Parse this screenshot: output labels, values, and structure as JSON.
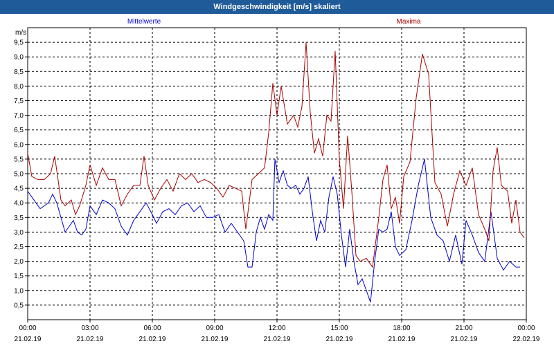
{
  "title": "Windgeschwindigkeit [m/s] skaliert",
  "chart_data": {
    "type": "line",
    "unit_label": "m/s",
    "ylim": [
      0,
      10
    ],
    "y_ticks": [
      "0,5",
      "1,0",
      "1,5",
      "2,0",
      "2,5",
      "3,0",
      "3,5",
      "4,0",
      "4,5",
      "5,0",
      "5,5",
      "6,0",
      "6,5",
      "7,0",
      "7,5",
      "8,0",
      "8,5",
      "9,0",
      "9,5"
    ],
    "xlim": [
      0,
      24
    ],
    "x_ticks": [
      {
        "time": "00:00",
        "date": "21.02.19"
      },
      {
        "time": "03:00",
        "date": "21.02.19"
      },
      {
        "time": "06:00",
        "date": "21.02.19"
      },
      {
        "time": "09:00",
        "date": "21.02.19"
      },
      {
        "time": "12:00",
        "date": "21.02.19"
      },
      {
        "time": "15:00",
        "date": "21.02.19"
      },
      {
        "time": "18:00",
        "date": "21.02.19"
      },
      {
        "time": "21:00",
        "date": "21.02.19"
      },
      {
        "time": "00:00",
        "date": "22.02.19"
      }
    ],
    "grid": true,
    "legend_placement": "top",
    "series": [
      {
        "name": "Mittelwerte",
        "color": "#0000cc",
        "points": [
          [
            0.0,
            4.4
          ],
          [
            0.2,
            4.2
          ],
          [
            0.4,
            4.0
          ],
          [
            0.6,
            3.8
          ],
          [
            0.8,
            3.9
          ],
          [
            1.0,
            4.0
          ],
          [
            1.2,
            4.3
          ],
          [
            1.4,
            4.0
          ],
          [
            1.6,
            3.5
          ],
          [
            1.8,
            3.0
          ],
          [
            2.0,
            3.2
          ],
          [
            2.2,
            3.4
          ],
          [
            2.4,
            3.0
          ],
          [
            2.6,
            2.9
          ],
          [
            2.8,
            3.1
          ],
          [
            3.0,
            3.9
          ],
          [
            3.3,
            3.6
          ],
          [
            3.6,
            4.1
          ],
          [
            3.9,
            4.0
          ],
          [
            4.2,
            3.8
          ],
          [
            4.5,
            3.2
          ],
          [
            4.8,
            2.9
          ],
          [
            5.1,
            3.4
          ],
          [
            5.4,
            3.7
          ],
          [
            5.7,
            4.0
          ],
          [
            6.0,
            3.6
          ],
          [
            6.2,
            3.3
          ],
          [
            6.5,
            3.7
          ],
          [
            6.8,
            3.8
          ],
          [
            7.1,
            3.6
          ],
          [
            7.4,
            3.9
          ],
          [
            7.7,
            4.0
          ],
          [
            8.0,
            3.7
          ],
          [
            8.3,
            3.9
          ],
          [
            8.6,
            3.5
          ],
          [
            8.9,
            3.5
          ],
          [
            9.2,
            3.6
          ],
          [
            9.5,
            3.0
          ],
          [
            9.8,
            3.3
          ],
          [
            10.1,
            3.0
          ],
          [
            10.4,
            2.7
          ],
          [
            10.6,
            1.8
          ],
          [
            10.8,
            1.8
          ],
          [
            11.0,
            3.0
          ],
          [
            11.2,
            3.5
          ],
          [
            11.4,
            3.1
          ],
          [
            11.6,
            3.6
          ],
          [
            11.8,
            3.4
          ],
          [
            11.9,
            5.5
          ],
          [
            12.1,
            4.7
          ],
          [
            12.3,
            5.1
          ],
          [
            12.5,
            4.6
          ],
          [
            12.7,
            4.5
          ],
          [
            12.9,
            4.6
          ],
          [
            13.1,
            4.3
          ],
          [
            13.3,
            4.5
          ],
          [
            13.5,
            4.9
          ],
          [
            13.7,
            3.7
          ],
          [
            13.9,
            2.7
          ],
          [
            14.1,
            3.4
          ],
          [
            14.3,
            3.0
          ],
          [
            14.5,
            4.2
          ],
          [
            14.7,
            4.9
          ],
          [
            14.9,
            4.3
          ],
          [
            15.1,
            2.9
          ],
          [
            15.3,
            1.8
          ],
          [
            15.5,
            3.1
          ],
          [
            15.7,
            2.0
          ],
          [
            15.9,
            1.2
          ],
          [
            16.1,
            1.4
          ],
          [
            16.3,
            1.0
          ],
          [
            16.5,
            0.6
          ],
          [
            16.7,
            2.0
          ],
          [
            16.9,
            3.1
          ],
          [
            17.1,
            3.0
          ],
          [
            17.3,
            3.1
          ],
          [
            17.5,
            3.7
          ],
          [
            17.7,
            2.5
          ],
          [
            17.9,
            2.2
          ],
          [
            18.2,
            2.4
          ],
          [
            18.5,
            3.4
          ],
          [
            18.8,
            4.6
          ],
          [
            19.1,
            5.5
          ],
          [
            19.4,
            3.5
          ],
          [
            19.7,
            2.9
          ],
          [
            20.0,
            2.7
          ],
          [
            20.3,
            2.0
          ],
          [
            20.6,
            2.9
          ],
          [
            20.9,
            1.9
          ],
          [
            21.1,
            3.4
          ],
          [
            21.4,
            2.9
          ],
          [
            21.7,
            2.3
          ],
          [
            22.0,
            2.0
          ],
          [
            22.3,
            3.7
          ],
          [
            22.6,
            2.1
          ],
          [
            22.9,
            1.7
          ],
          [
            23.2,
            2.0
          ],
          [
            23.5,
            1.8
          ],
          [
            23.7,
            1.8
          ]
        ]
      },
      {
        "name": "Maxima",
        "color": "#aa0000",
        "points": [
          [
            0.0,
            5.7
          ],
          [
            0.2,
            4.9
          ],
          [
            0.5,
            4.8
          ],
          [
            0.8,
            4.8
          ],
          [
            1.1,
            5.0
          ],
          [
            1.3,
            5.6
          ],
          [
            1.6,
            4.1
          ],
          [
            1.8,
            3.9
          ],
          [
            2.1,
            4.1
          ],
          [
            2.3,
            3.6
          ],
          [
            2.5,
            3.9
          ],
          [
            2.8,
            4.6
          ],
          [
            3.0,
            5.3
          ],
          [
            3.3,
            4.6
          ],
          [
            3.6,
            5.2
          ],
          [
            3.9,
            4.8
          ],
          [
            4.2,
            4.8
          ],
          [
            4.5,
            3.9
          ],
          [
            4.8,
            4.3
          ],
          [
            5.1,
            4.6
          ],
          [
            5.4,
            4.6
          ],
          [
            5.6,
            5.6
          ],
          [
            5.8,
            4.6
          ],
          [
            6.1,
            4.1
          ],
          [
            6.4,
            4.5
          ],
          [
            6.7,
            4.8
          ],
          [
            7.0,
            4.4
          ],
          [
            7.3,
            5.0
          ],
          [
            7.6,
            4.8
          ],
          [
            7.9,
            5.0
          ],
          [
            8.2,
            4.7
          ],
          [
            8.5,
            4.8
          ],
          [
            8.8,
            4.7
          ],
          [
            9.1,
            4.5
          ],
          [
            9.4,
            4.2
          ],
          [
            9.7,
            4.6
          ],
          [
            10.0,
            4.5
          ],
          [
            10.3,
            4.4
          ],
          [
            10.5,
            3.1
          ],
          [
            10.8,
            4.8
          ],
          [
            11.1,
            5.0
          ],
          [
            11.4,
            5.2
          ],
          [
            11.6,
            6.4
          ],
          [
            11.8,
            8.1
          ],
          [
            12.0,
            7.0
          ],
          [
            12.2,
            8.0
          ],
          [
            12.5,
            6.7
          ],
          [
            12.8,
            7.0
          ],
          [
            13.0,
            6.6
          ],
          [
            13.2,
            7.3
          ],
          [
            13.4,
            9.5
          ],
          [
            13.6,
            7.1
          ],
          [
            13.8,
            5.7
          ],
          [
            14.0,
            6.2
          ],
          [
            14.2,
            5.6
          ],
          [
            14.4,
            7.0
          ],
          [
            14.6,
            6.8
          ],
          [
            14.8,
            9.2
          ],
          [
            15.0,
            5.5
          ],
          [
            15.2,
            3.8
          ],
          [
            15.4,
            6.3
          ],
          [
            15.6,
            4.4
          ],
          [
            15.8,
            2.2
          ],
          [
            16.0,
            2.0
          ],
          [
            16.3,
            2.1
          ],
          [
            16.6,
            1.8
          ],
          [
            16.9,
            3.5
          ],
          [
            17.1,
            4.8
          ],
          [
            17.3,
            5.3
          ],
          [
            17.5,
            3.8
          ],
          [
            17.7,
            4.2
          ],
          [
            17.9,
            3.3
          ],
          [
            18.1,
            4.9
          ],
          [
            18.4,
            5.4
          ],
          [
            18.7,
            7.6
          ],
          [
            19.0,
            9.1
          ],
          [
            19.3,
            8.4
          ],
          [
            19.6,
            4.7
          ],
          [
            19.9,
            4.3
          ],
          [
            20.2,
            3.2
          ],
          [
            20.5,
            4.3
          ],
          [
            20.8,
            5.1
          ],
          [
            21.1,
            4.6
          ],
          [
            21.4,
            5.2
          ],
          [
            21.7,
            3.6
          ],
          [
            22.0,
            3.1
          ],
          [
            22.2,
            2.7
          ],
          [
            22.4,
            5.1
          ],
          [
            22.6,
            5.9
          ],
          [
            22.8,
            4.6
          ],
          [
            23.1,
            4.4
          ],
          [
            23.3,
            3.3
          ],
          [
            23.5,
            4.1
          ],
          [
            23.7,
            3.0
          ],
          [
            23.9,
            2.8
          ]
        ]
      }
    ]
  }
}
